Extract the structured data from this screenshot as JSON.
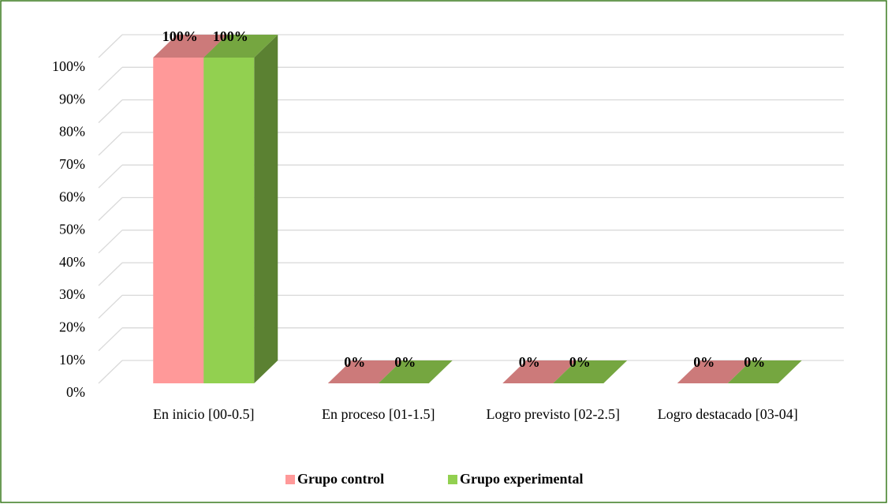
{
  "chart_data": {
    "type": "bar3d",
    "categories": [
      "En inicio [00-0.5]",
      "En proceso [01-1.5]",
      "Logro previsto [02-2.5]",
      "Logro destacado [03-04]"
    ],
    "series": [
      {
        "name": "Grupo control",
        "color": "#ff9999",
        "values": [
          100,
          0,
          0,
          0
        ],
        "value_labels": [
          "100%",
          "0%",
          "0%",
          "0%"
        ]
      },
      {
        "name": "Grupo experimental",
        "color": "#92d050",
        "values": [
          100,
          0,
          0,
          0
        ],
        "value_labels": [
          "100%",
          "0%",
          "0%",
          "0%"
        ]
      }
    ],
    "ylim": [
      0,
      100
    ],
    "yticks": [
      {
        "value": 0,
        "label": "0%"
      },
      {
        "value": 10,
        "label": "10%"
      },
      {
        "value": 20,
        "label": "20%"
      },
      {
        "value": 30,
        "label": "30%"
      },
      {
        "value": 40,
        "label": "40%"
      },
      {
        "value": 50,
        "label": "50%"
      },
      {
        "value": 60,
        "label": "60%"
      },
      {
        "value": 70,
        "label": "70%"
      },
      {
        "value": 80,
        "label": "80%"
      },
      {
        "value": 90,
        "label": "90%"
      },
      {
        "value": 100,
        "label": "100%"
      }
    ],
    "grid": true,
    "legend": "bottom"
  }
}
